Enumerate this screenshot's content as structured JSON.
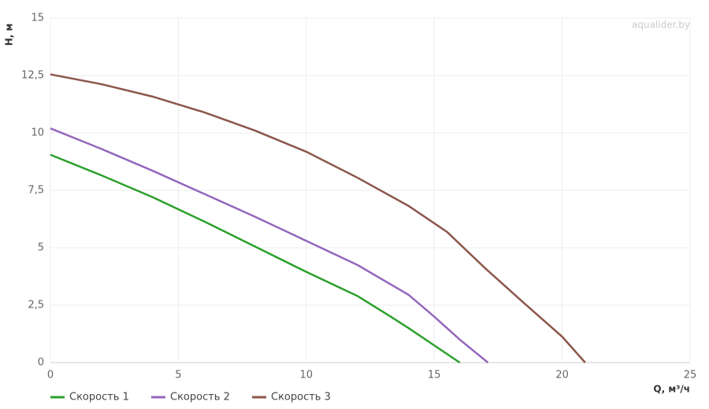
{
  "chart_data": {
    "type": "line",
    "watermark": "aqualider.by",
    "x_label": "Q, м³/ч",
    "y_label": "H, м",
    "xlim": [
      0,
      25
    ],
    "xticks": [
      0,
      5,
      10,
      15,
      20,
      25
    ],
    "ylim": [
      0,
      15
    ],
    "yticks": [
      0,
      {
        "value": 2.5,
        "label": "2,5"
      },
      5,
      {
        "value": 7.5,
        "label": "7,5"
      },
      10,
      {
        "value": 12.5,
        "label": "12,5"
      },
      15
    ],
    "grid": true,
    "legend": "bottom-left",
    "series": [
      {
        "name": "Скорость 1",
        "color": "#2ca02c",
        "x": [
          0,
          2,
          4,
          6,
          8,
          10,
          12,
          13.3,
          14,
          15,
          16
        ],
        "values": [
          9.05,
          8.15,
          7.2,
          6.15,
          5.05,
          3.95,
          2.9,
          2.0,
          1.5,
          0.75,
          0
        ]
      },
      {
        "name": "Скорость 2",
        "color": "#9467bd",
        "x": [
          0,
          2,
          4,
          6,
          8,
          10,
          12,
          14,
          15,
          16,
          17.1
        ],
        "values": [
          10.2,
          9.3,
          8.35,
          7.35,
          6.35,
          5.3,
          4.25,
          2.95,
          2.0,
          1.0,
          0
        ]
      },
      {
        "name": "Скорость 3",
        "color": "#8c564b",
        "x": [
          0,
          2,
          4,
          6,
          8,
          10,
          12,
          14,
          15.5,
          17,
          18.5,
          20,
          20.9
        ],
        "values": [
          12.55,
          12.12,
          11.58,
          10.9,
          10.1,
          9.18,
          8.05,
          6.82,
          5.69,
          4.1,
          2.6,
          1.13,
          0
        ]
      }
    ]
  }
}
